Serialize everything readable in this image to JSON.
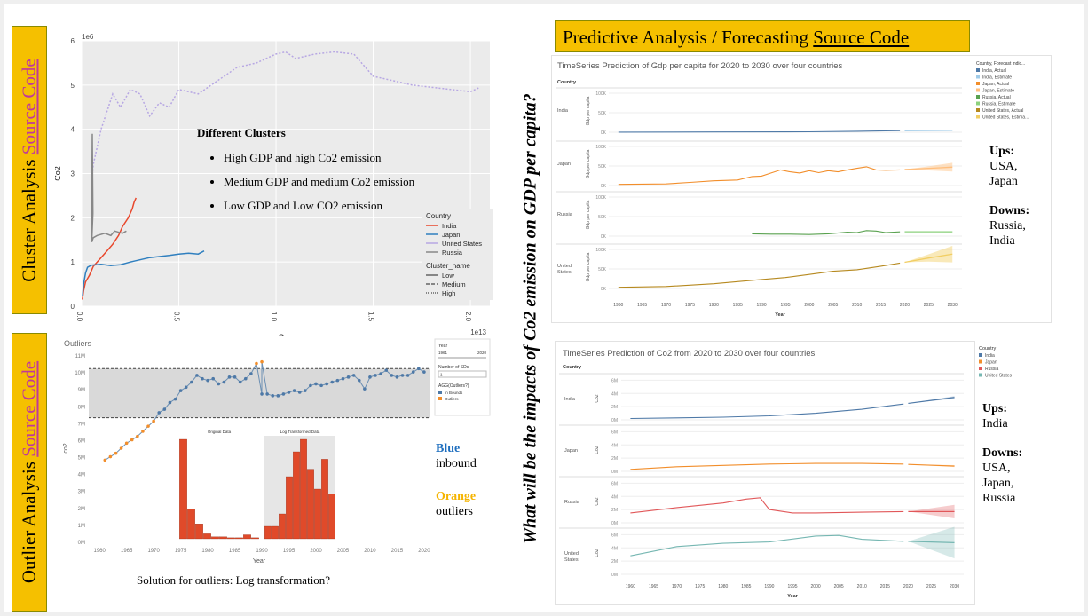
{
  "left_banners": {
    "cluster": {
      "label": "Cluster Analysis",
      "link": "Source Code"
    },
    "outlier": {
      "label": "Outlier Analysis",
      "link": "Source Code"
    }
  },
  "forecast_banner": {
    "label": "Predictive Analysis  /  Forecasting",
    "link": "Source Code"
  },
  "vertical_question": "What will be the impacts of Co2 emission   on GDP per capita?",
  "cluster_chart": {
    "y_exponent": "1e6",
    "x_exponent": "1e13",
    "ylabel": "Co2",
    "xlabel": "Gdp",
    "yticks": [
      "0",
      "1",
      "2",
      "3",
      "4",
      "5",
      "6"
    ],
    "xticks": [
      "0.0",
      "0.5",
      "1.0",
      "1.5",
      "2.0"
    ],
    "legend_country_title": "Country",
    "legend_countries": [
      "India",
      "Japan",
      "United States",
      "Russia"
    ],
    "legend_cluster_title": "Cluster_name",
    "legend_clusters": [
      "Low",
      "Medium",
      "High"
    ]
  },
  "clusters_text": {
    "heading": "Different Clusters",
    "items": [
      "High GDP and high Co2 emission",
      "Medium GDP and medium Co2 emission",
      "Low GDP and Low CO2 emission"
    ]
  },
  "outlier_chart": {
    "title": "Outliers",
    "ylabel": "co2",
    "xlabel": "Year",
    "yticks": [
      "0M",
      "1M",
      "2M",
      "3M",
      "4M",
      "5M",
      "6M",
      "7M",
      "8M",
      "9M",
      "10M",
      "11M"
    ],
    "xticks": [
      "1960",
      "1965",
      "1970",
      "1975",
      "1980",
      "1985",
      "1990",
      "1995",
      "2000",
      "2005",
      "2010",
      "2015",
      "2020"
    ],
    "side_year_label": "Year",
    "side_year_from": "1961",
    "side_year_to": "2020",
    "side_sd_label": "Number of SDs",
    "side_sd_value": "1",
    "side_agg_label": "AGG(Outliers?)",
    "side_agg_items": [
      "In Bounds",
      "Outliers"
    ],
    "hist_original_title": "Original Data",
    "hist_log_title": "Log Transformed Data"
  },
  "outlier_note": {
    "blue": "Blue",
    "blue_text": "inbound",
    "orange": "Orange",
    "orange_text": "outliers"
  },
  "outlier_caption": "Solution for outliers:   Log transformation?",
  "gdp_forecast": {
    "title": "TimeSeries Prediction of Gdp per capita for 2020 to 2030 over four countries",
    "country_header": "Country",
    "rows": [
      "India",
      "Japan",
      "Russia",
      "United States"
    ],
    "ylabel": "Gdp per capita",
    "yticks": [
      "0K",
      "50K",
      "100K"
    ],
    "xticks": [
      "1960",
      "1965",
      "1970",
      "1975",
      "1980",
      "1985",
      "1990",
      "1995",
      "2000",
      "2005",
      "2010",
      "2015",
      "2020",
      "2025",
      "2030"
    ],
    "xlabel": "Year",
    "legend_title": "Country, Forecast indic...",
    "legend_items": [
      "India, Actual",
      "India, Estimate",
      "Japan, Actual",
      "Japan, Estimate",
      "Russia, Actual",
      "Russia, Estimate",
      "United States, Actual",
      "United States, Estima..."
    ]
  },
  "gdp_note": {
    "ups_label": "Ups:",
    "ups": [
      "USA,",
      "Japan"
    ],
    "downs_label": "Downs:",
    "downs": [
      "Russia,",
      "India"
    ]
  },
  "co2_forecast": {
    "title": "TimeSeries Prediction of Co2 from 2020 to 2030 over four countries",
    "country_header": "Country",
    "rows": [
      "India",
      "Japan",
      "Russia",
      "United States"
    ],
    "ylabel": "Co2",
    "yticks": [
      "0M",
      "2M",
      "4M",
      "6M"
    ],
    "xticks": [
      "1960",
      "1965",
      "1970",
      "1975",
      "1980",
      "1985",
      "1990",
      "1995",
      "2000",
      "2005",
      "2010",
      "2015",
      "2020",
      "2025",
      "2030"
    ],
    "xlabel": "Year",
    "legend_title": "Country",
    "legend_items": [
      "India",
      "Japan",
      "Russia",
      "United States"
    ]
  },
  "co2_note": {
    "ups_label": "Ups:",
    "ups": [
      "India"
    ],
    "downs_label": "Downs:",
    "downs": [
      "USA,",
      "Japan,",
      "Russia"
    ]
  },
  "colors": {
    "banner": "#f5c000",
    "link": "#c0399b",
    "india": "#e8472c",
    "japan": "#2f7fbf",
    "usa": "#b7a7e3",
    "russia": "#888888",
    "t_india": "#4e79a7",
    "t_japan": "#f28e2b",
    "t_russia": "#e15759",
    "t_usa": "#76b7b2",
    "t_usa_gdp": "#b6891f",
    "t_russia_gdp": "#59a14f",
    "outlier_blue": "#4e79a7",
    "outlier_orange": "#f28e2b",
    "note_blue": "#1f6fbf",
    "note_orange": "#f5b400"
  },
  "chart_data": [
    {
      "type": "line",
      "title": "",
      "xlabel": "Gdp",
      "ylabel": "Co2",
      "xlim": [
        0,
        21000000000000.0
      ],
      "ylim": [
        0,
        6000000
      ],
      "grid": true,
      "legend_placement": "bottom-right",
      "series": [
        {
          "name": "India",
          "x": [
            37000000000.0,
            100000000000.0,
            200000000000.0,
            400000000000.0,
            600000000000.0,
            900000000000.0,
            1200000000000.0,
            1600000000000.0,
            1900000000000.0,
            2100000000000.0,
            2400000000000.0,
            2600000000000.0,
            2700000000000.0,
            2800000000000.0
          ],
          "y": [
            150000,
            350000,
            550000,
            700000,
            900000,
            1050000,
            1200000,
            1400000,
            1600000,
            1800000,
            2000000,
            2200000,
            2350000,
            2450000
          ]
        },
        {
          "name": "Japan",
          "x": [
            44000000000.0,
            100000000000.0,
            200000000000.0,
            300000000000.0,
            500000000000.0,
            1000000000000.0,
            1500000000000.0,
            2000000000000.0,
            2500000000000.0,
            3000000000000.0,
            3500000000000.0,
            4500000000000.0,
            5000000000000.0,
            5500000000000.0,
            6000000000000.0,
            6300000000000.0
          ],
          "y": [
            230000,
            500000,
            750000,
            880000,
            930000,
            950000,
            920000,
            940000,
            1000000,
            1050000,
            1100000,
            1150000,
            1180000,
            1200000,
            1180000,
            1250000
          ]
        },
        {
          "name": "United States",
          "x": [
            540000000000.0,
            600000000000.0,
            800000000000.0,
            1000000000000.0,
            1300000000000.0,
            1600000000000.0,
            2000000000000.0,
            2500000000000.0,
            3000000000000.0,
            3500000000000.0,
            4000000000000.0,
            4500000000000.0,
            5000000000000.0,
            6000000000000.0,
            7000000000000.0,
            8000000000000.0,
            9000000000000.0,
            10000000000000.0,
            10500000000000.0,
            11000000000000.0,
            12000000000000.0,
            13000000000000.0,
            14000000000000.0,
            15000000000000.0,
            16000000000000.0,
            17000000000000.0,
            18000000000000.0,
            19000000000000.0,
            20000000000000.0,
            20500000000000.0
          ],
          "y": [
            2900000,
            3200000,
            3600000,
            4000000,
            4400000,
            4800000,
            4500000,
            4900000,
            4800000,
            4300000,
            4600000,
            4500000,
            4900000,
            4800000,
            5100000,
            5400000,
            5500000,
            5700000,
            5750000,
            5600000,
            5700000,
            5750000,
            5700000,
            5200000,
            5100000,
            5000000,
            4950000,
            4900000,
            4850000,
            4950000
          ]
        },
        {
          "name": "Russia",
          "x": [
            500000000000.0,
            550000000000.0,
            580000000000.0,
            520000000000.0,
            600000000000.0,
            800000000000.0,
            1200000000000.0,
            1500000000000.0,
            1700000000000.0,
            2100000000000.0,
            2300000000000.0
          ],
          "y": [
            1500000,
            3900000,
            2100000,
            1450000,
            1550000,
            1600000,
            1650000,
            1600000,
            1700000,
            1650000,
            1700000
          ]
        }
      ]
    },
    {
      "type": "scatter",
      "title": "Outliers",
      "xlabel": "Year",
      "ylabel": "co2",
      "xlim": [
        1958,
        2021
      ],
      "ylim": [
        0,
        11000000
      ],
      "band": [
        7300000,
        10200000
      ],
      "series": [
        {
          "name": "In Bounds",
          "x": [
            1971,
            1972,
            1973,
            1974,
            1975,
            1976,
            1977,
            1978,
            1979,
            1980,
            1981,
            1982,
            1983,
            1984,
            1985,
            1986,
            1987,
            1988,
            1990,
            1991,
            1992,
            1993,
            1994,
            1995,
            1996,
            1997,
            1998,
            1999,
            2000,
            2001,
            2002,
            2003,
            2004,
            2005,
            2006,
            2007,
            2008,
            2009,
            2010,
            2011,
            2012,
            2013,
            2014,
            2015,
            2016,
            2017,
            2018,
            2019,
            2020
          ],
          "y": [
            7600000,
            7800000,
            8200000,
            8400000,
            8900000,
            9100000,
            9400000,
            9800000,
            9600000,
            9500000,
            9600000,
            9300000,
            9400000,
            9700000,
            9700000,
            9400000,
            9600000,
            9900000,
            8700000,
            8700000,
            8600000,
            8600000,
            8700000,
            8800000,
            8900000,
            8800000,
            8900000,
            9200000,
            9300000,
            9200000,
            9300000,
            9400000,
            9500000,
            9600000,
            9700000,
            9800000,
            9500000,
            9000000,
            9700000,
            9800000,
            9900000,
            10100000,
            9800000,
            9700000,
            9800000,
            9800000,
            10000000,
            10200000,
            10000000
          ]
        },
        {
          "name": "Outliers",
          "x": [
            1961,
            1962,
            1963,
            1964,
            1965,
            1966,
            1967,
            1968,
            1969,
            1970,
            1989,
            1990
          ],
          "y": [
            4800000,
            5000000,
            5200000,
            5500000,
            5800000,
            6000000,
            6200000,
            6500000,
            6800000,
            7100000,
            10500000,
            10600000
          ]
        }
      ]
    },
    {
      "type": "line",
      "title": "TimeSeries Prediction of Gdp per capita for 2020 to 2030 over four countries",
      "xlabel": "Year",
      "ylabel": "Gdp per capita",
      "xlim": [
        1960,
        2030
      ],
      "ylim": [
        0,
        100000
      ],
      "series": [
        {
          "name": "India, Actual",
          "x": [
            1960,
            1980,
            2000,
            2010,
            2019
          ],
          "y": [
            300,
            600,
            1200,
            2500,
            4000
          ]
        },
        {
          "name": "India, Estimate",
          "x": [
            2020,
            2030
          ],
          "y": [
            4000,
            5000
          ]
        },
        {
          "name": "Japan, Actual",
          "x": [
            1960,
            1970,
            1975,
            1980,
            1985,
            1988,
            1990,
            1992,
            1994,
            1996,
            1998,
            2000,
            2002,
            2004,
            2006,
            2008,
            2010,
            2012,
            2014,
            2016,
            2019
          ],
          "y": [
            3000,
            4000,
            8000,
            12000,
            14000,
            23000,
            24000,
            32000,
            40000,
            35000,
            32000,
            38000,
            33000,
            38000,
            35000,
            40000,
            44000,
            48000,
            40000,
            39000,
            40000
          ]
        },
        {
          "name": "Japan, Estimate",
          "x": [
            2020,
            2025,
            2030
          ],
          "y": [
            41000,
            44000,
            47000
          ]
        },
        {
          "name": "Russia, Actual",
          "x": [
            1988,
            1992,
            1996,
            2000,
            2004,
            2008,
            2010,
            2012,
            2014,
            2016,
            2019
          ],
          "y": [
            6000,
            5000,
            5000,
            4000,
            6000,
            10000,
            9000,
            14000,
            13000,
            9000,
            11000
          ]
        },
        {
          "name": "Russia, Estimate",
          "x": [
            2020,
            2030
          ],
          "y": [
            11000,
            11000
          ]
        },
        {
          "name": "United States, Actual",
          "x": [
            1960,
            1970,
            1980,
            1990,
            1995,
            2000,
            2005,
            2010,
            2015,
            2019
          ],
          "y": [
            3000,
            5000,
            12000,
            23000,
            28000,
            36000,
            44000,
            48000,
            57000,
            65000
          ]
        },
        {
          "name": "United States, Estimate",
          "x": [
            2020,
            2025,
            2030
          ],
          "y": [
            67000,
            78000,
            88000
          ]
        }
      ]
    },
    {
      "type": "line",
      "title": "TimeSeries Prediction of Co2 from 2020 to 2030 over four countries",
      "xlabel": "Year",
      "ylabel": "Co2",
      "xlim": [
        1960,
        2030
      ],
      "ylim": [
        0,
        6000000
      ],
      "series": [
        {
          "name": "India",
          "x": [
            1960,
            1970,
            1980,
            1990,
            2000,
            2010,
            2019,
            2020,
            2030
          ],
          "y": [
            200000,
            300000,
            400000,
            600000,
            1000000,
            1600000,
            2400000,
            2500000,
            3400000
          ]
        },
        {
          "name": "Japan",
          "x": [
            1960,
            1970,
            1980,
            1990,
            2000,
            2010,
            2019,
            2020,
            2030
          ],
          "y": [
            300000,
            700000,
            900000,
            1100000,
            1200000,
            1200000,
            1100000,
            1050000,
            800000
          ]
        },
        {
          "name": "Russia",
          "x": [
            1960,
            1970,
            1980,
            1985,
            1988,
            1990,
            1995,
            2000,
            2010,
            2019,
            2020,
            2030
          ],
          "y": [
            1500000,
            2300000,
            3000000,
            3600000,
            3800000,
            2000000,
            1500000,
            1500000,
            1600000,
            1700000,
            1700000,
            1700000
          ]
        },
        {
          "name": "United States",
          "x": [
            1960,
            1970,
            1980,
            1990,
            2000,
            2005,
            2010,
            2019,
            2020,
            2030
          ],
          "y": [
            2800000,
            4200000,
            4700000,
            4900000,
            5800000,
            5900000,
            5300000,
            5000000,
            5000000,
            4800000
          ]
        }
      ]
    }
  ]
}
